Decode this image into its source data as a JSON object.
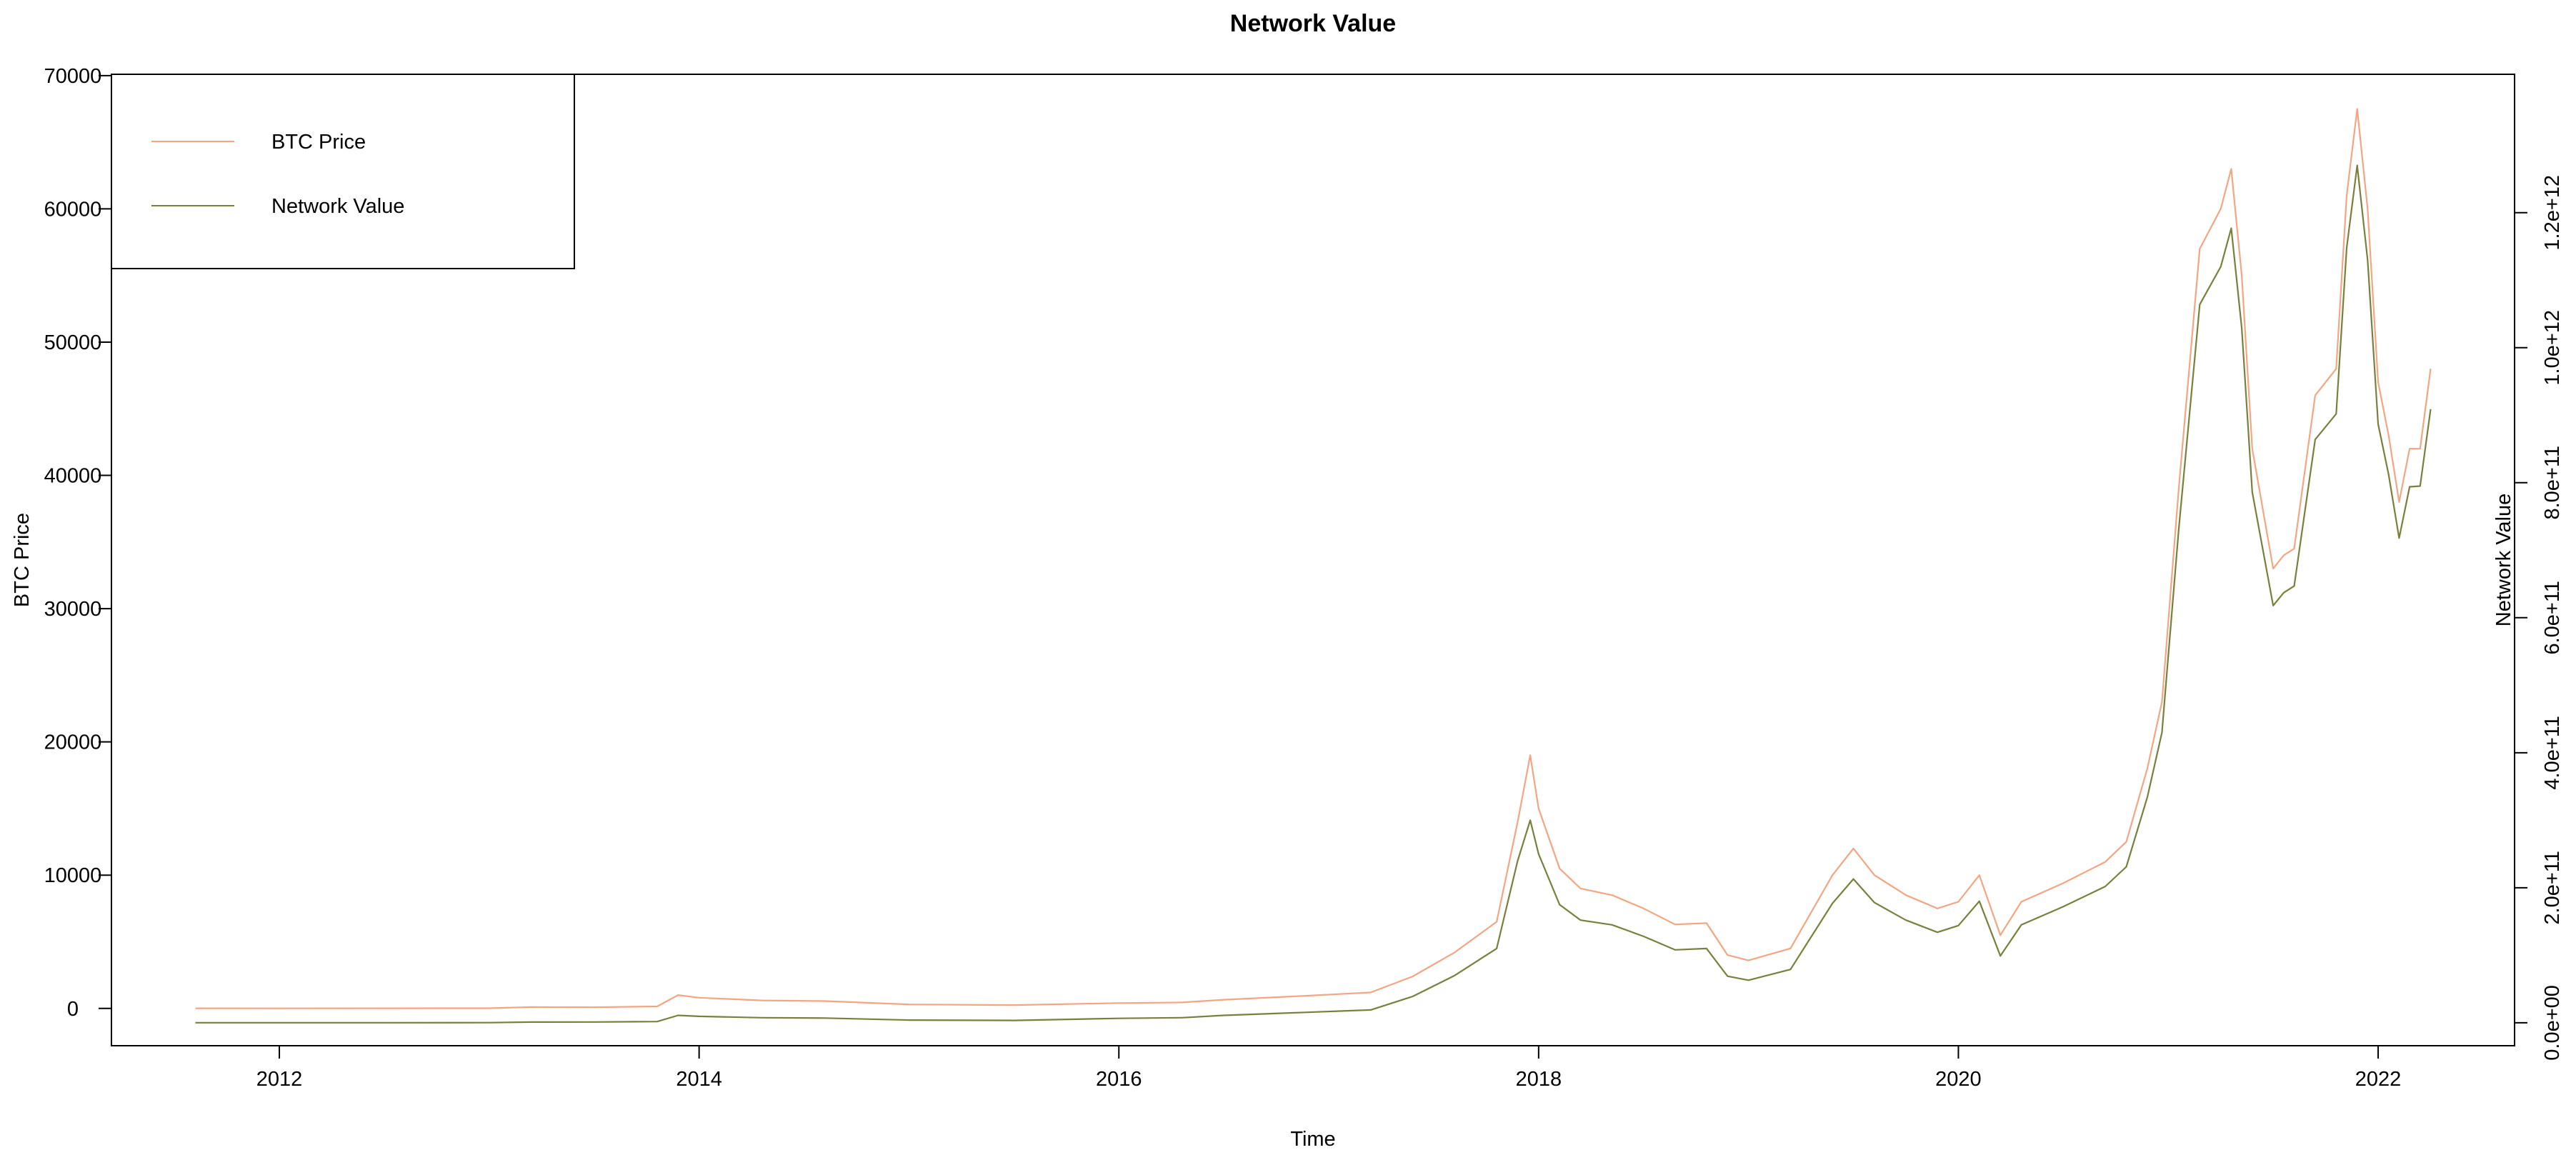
{
  "chart_data": {
    "type": "line",
    "title": "Network Value",
    "xlabel": "Time",
    "ylabel": "BTC Price",
    "y2label": "Network Value",
    "xlim": [
      2011.2,
      2022.65
    ],
    "ylim": [
      -2800,
      70100
    ],
    "y2lim": [
      -34000000000,
      1405000000000
    ],
    "x_ticks": [
      2012,
      2014,
      2016,
      2018,
      2020,
      2022
    ],
    "x_tick_labels": [
      "2012",
      "2014",
      "2016",
      "2018",
      "2020",
      "2022"
    ],
    "y_ticks": [
      0,
      10000,
      20000,
      30000,
      40000,
      50000,
      60000,
      70000
    ],
    "y_tick_labels": [
      "0",
      "10000",
      "20000",
      "30000",
      "40000",
      "50000",
      "60000",
      "70000"
    ],
    "y2_ticks": [
      0,
      200000000000,
      400000000000,
      600000000000,
      800000000000,
      1000000000000,
      1200000000000
    ],
    "y2_tick_labels": [
      "0.0e+00",
      "2.0e+11",
      "4.0e+11",
      "6.0e+11",
      "8.0e+11",
      "1.0e+12",
      "1.2e+12"
    ],
    "grid": false,
    "legend_position": "top-left",
    "legend": [
      "BTC Price",
      "Network Value"
    ],
    "series": [
      {
        "name": "BTC Price",
        "axis": "left",
        "color": "#f4a582",
        "x": [
          2011.6,
          2012.0,
          2012.5,
          2013.0,
          2013.2,
          2013.5,
          2013.8,
          2013.9,
          2014.0,
          2014.3,
          2014.6,
          2015.0,
          2015.5,
          2016.0,
          2016.3,
          2016.5,
          2016.9,
          2017.2,
          2017.4,
          2017.6,
          2017.8,
          2017.9,
          2017.96,
          2018.0,
          2018.1,
          2018.2,
          2018.35,
          2018.5,
          2018.65,
          2018.8,
          2018.9,
          2019.0,
          2019.2,
          2019.4,
          2019.5,
          2019.6,
          2019.75,
          2019.9,
          2020.0,
          2020.1,
          2020.2,
          2020.3,
          2020.5,
          2020.7,
          2020.8,
          2020.9,
          2020.97,
          2021.05,
          2021.15,
          2021.25,
          2021.3,
          2021.35,
          2021.4,
          2021.5,
          2021.55,
          2021.6,
          2021.7,
          2021.8,
          2021.85,
          2021.9,
          2021.95,
          2022.0,
          2022.05,
          2022.1,
          2022.15,
          2022.2,
          2022.25
        ],
        "values": [
          10,
          5,
          7,
          15,
          100,
          90,
          150,
          1000,
          800,
          600,
          550,
          300,
          250,
          400,
          450,
          650,
          950,
          1200,
          2400,
          4200,
          6500,
          14000,
          19000,
          15000,
          10500,
          9000,
          8500,
          7500,
          6300,
          6400,
          4000,
          3600,
          4500,
          10000,
          12000,
          10000,
          8500,
          7500,
          8000,
          10000,
          5500,
          8000,
          9400,
          11000,
          12500,
          18000,
          23000,
          39000,
          57000,
          60000,
          63000,
          55000,
          42000,
          33000,
          34000,
          34500,
          46000,
          48000,
          61000,
          67500,
          60000,
          47000,
          43000,
          38000,
          42000,
          42000,
          48000
        ]
      },
      {
        "name": "Network Value",
        "axis": "right",
        "color": "#7a7f3c",
        "x": [
          2011.6,
          2012.0,
          2012.5,
          2013.0,
          2013.2,
          2013.5,
          2013.8,
          2013.9,
          2014.0,
          2014.3,
          2014.6,
          2015.0,
          2015.5,
          2016.0,
          2016.3,
          2016.5,
          2016.9,
          2017.2,
          2017.4,
          2017.6,
          2017.8,
          2017.9,
          2017.96,
          2018.0,
          2018.1,
          2018.2,
          2018.35,
          2018.5,
          2018.65,
          2018.8,
          2018.9,
          2019.0,
          2019.2,
          2019.4,
          2019.5,
          2019.6,
          2019.75,
          2019.9,
          2020.0,
          2020.1,
          2020.2,
          2020.3,
          2020.5,
          2020.7,
          2020.8,
          2020.9,
          2020.97,
          2021.05,
          2021.15,
          2021.25,
          2021.3,
          2021.35,
          2021.4,
          2021.5,
          2021.55,
          2021.6,
          2021.7,
          2021.8,
          2021.85,
          2021.9,
          2021.95,
          2022.0,
          2022.05,
          2022.1,
          2022.15,
          2022.2,
          2022.25
        ],
        "values": [
          70000000,
          50000000,
          80000000,
          150000000,
          1000000000,
          1100000000,
          1800000000,
          11000000000,
          9500000000,
          7500000000,
          7000000000,
          4000000000,
          3500000000,
          6500000000,
          7500000000,
          11000000000,
          15500000000,
          19000000000,
          39000000000,
          70000000000,
          110000000000,
          240000000000,
          300000000000,
          250000000000,
          175000000000,
          152000000000,
          145000000000,
          128000000000,
          108000000000,
          110000000000,
          69000000000,
          63000000000,
          79000000000,
          177000000000,
          213000000000,
          178000000000,
          152000000000,
          134000000000,
          144000000000,
          180000000000,
          99000000000,
          145000000000,
          172000000000,
          202000000000,
          231000000000,
          334000000000,
          430000000000,
          731000000000,
          1064000000000,
          1120000000000,
          1177000000000,
          1029000000000,
          786000000000,
          618000000000,
          637000000000,
          647000000000,
          864000000000,
          902000000000,
          1148000000000,
          1270000000000,
          1130000000000,
          887000000000,
          812000000000,
          718000000000,
          794000000000,
          795000000000,
          909000000000
        ]
      }
    ]
  }
}
